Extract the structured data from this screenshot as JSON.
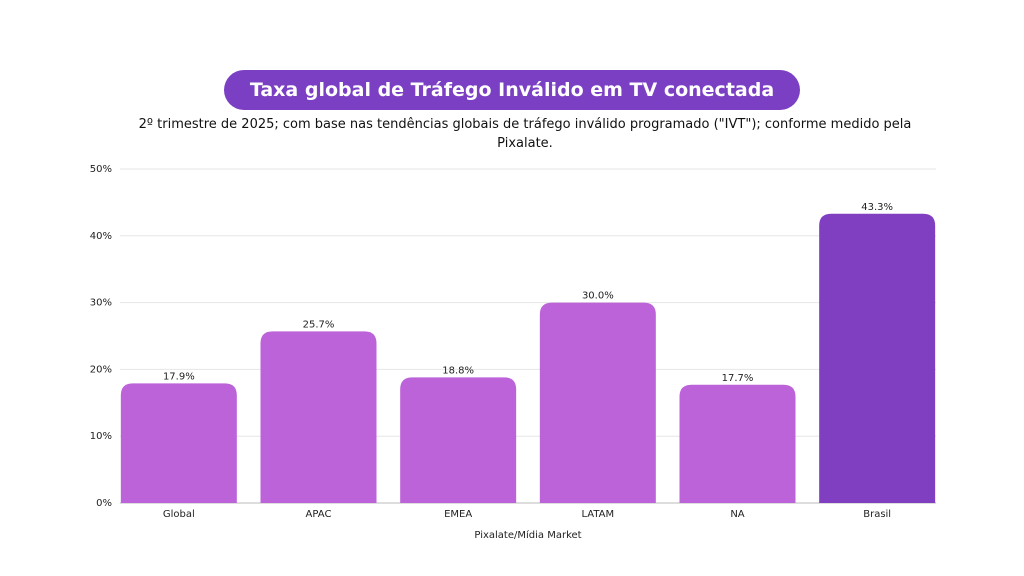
{
  "chart_data": {
    "type": "bar",
    "title": "Taxa global de Tráfego Inválido em TV conectada",
    "subtitle": "2º trimestre de 2025; com base nas tendências globais de tráfego inválido programado (\"IVT\"); conforme medido pela Pixalate.",
    "x_label": "Pixalate/Mídia Market",
    "categories": [
      "Global",
      "APAC",
      "EMEA",
      "LATAM",
      "NA",
      "Brasil"
    ],
    "values": [
      17.9,
      25.7,
      18.8,
      30.0,
      17.7,
      43.3
    ],
    "value_labels": [
      "17.9%",
      "25.7%",
      "18.8%",
      "30.0%",
      "17.7%",
      "43.3%"
    ],
    "colors": [
      "#bd63d9",
      "#bd63d9",
      "#bd63d9",
      "#bd63d9",
      "#bd63d9",
      "#7f3fc0"
    ],
    "ylim": [
      0,
      50
    ],
    "yticks": [
      {
        "value": 0,
        "label": "0%"
      },
      {
        "value": 10,
        "label": "10%"
      },
      {
        "value": 20,
        "label": "20%"
      },
      {
        "value": 30,
        "label": "30%"
      },
      {
        "value": 40,
        "label": "40%"
      },
      {
        "value": 50,
        "label": "50%"
      }
    ],
    "grid": true
  }
}
